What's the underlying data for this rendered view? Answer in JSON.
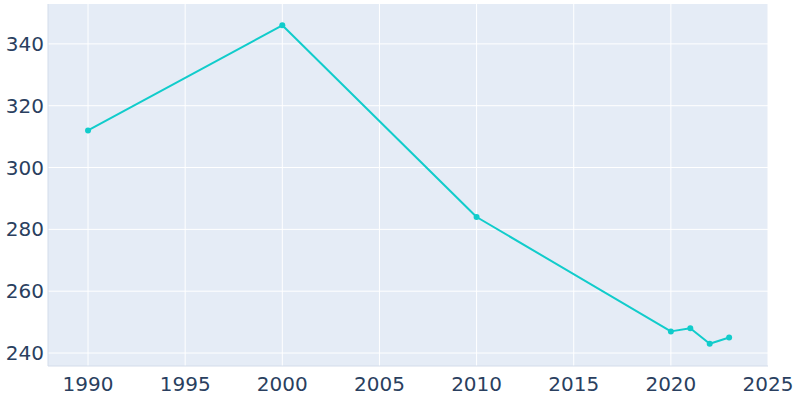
{
  "chart_data": {
    "type": "line",
    "x": [
      1990,
      2000,
      2010,
      2020,
      2021,
      2022,
      2023
    ],
    "values": [
      312,
      346,
      284,
      247,
      248,
      243,
      245
    ],
    "color": "#11cccb",
    "marker": "circle",
    "xlim": [
      1987.94,
      2025
    ],
    "xticks": [
      1990,
      1995,
      2000,
      2005,
      2010,
      2015,
      2020,
      2025
    ],
    "ylim": [
      235.8,
      352.9
    ],
    "yticks": [
      240,
      260,
      280,
      300,
      320,
      340
    ],
    "grid": true
  }
}
